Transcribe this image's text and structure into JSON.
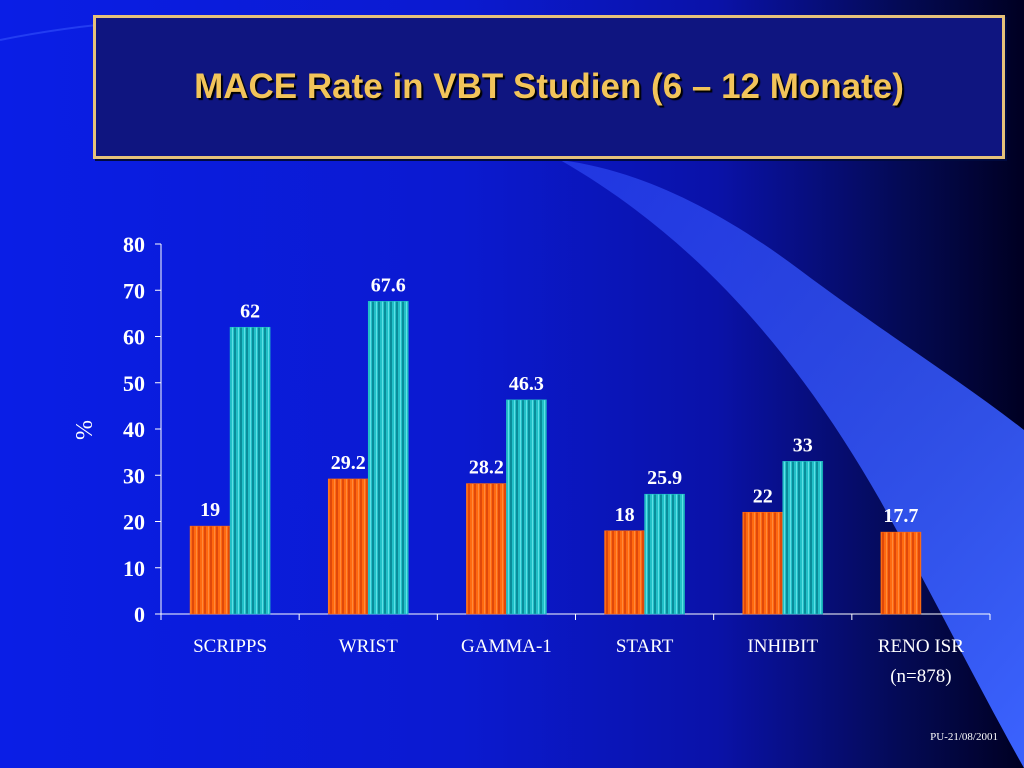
{
  "title": "MACE Rate in VBT Studien (6 – 12 Monate)",
  "footer": "PU-21/08/2001",
  "colors": {
    "series_a": "#ff6a10",
    "series_b": "#22c0c8",
    "title_text": "#f2c45a",
    "title_border": "#e6c27a",
    "axis": "#ffffff"
  },
  "chart_data": {
    "type": "bar",
    "categories": [
      [
        "SCRIPPS"
      ],
      [
        "WRIST"
      ],
      [
        "GAMMA-1"
      ],
      [
        "START"
      ],
      [
        "INHIBIT"
      ],
      [
        "RENO ISR",
        "(n=878)"
      ]
    ],
    "series": [
      {
        "values": [
          19,
          29.2,
          28.2,
          18,
          22,
          17.7
        ]
      },
      {
        "values": [
          62,
          67.6,
          46.3,
          25.9,
          33,
          null
        ]
      }
    ],
    "ylabel": "%",
    "ylim": [
      0,
      80
    ],
    "yticks": [
      0,
      10,
      20,
      30,
      40,
      50,
      60,
      70,
      80
    ],
    "grid": false,
    "legend": false
  }
}
